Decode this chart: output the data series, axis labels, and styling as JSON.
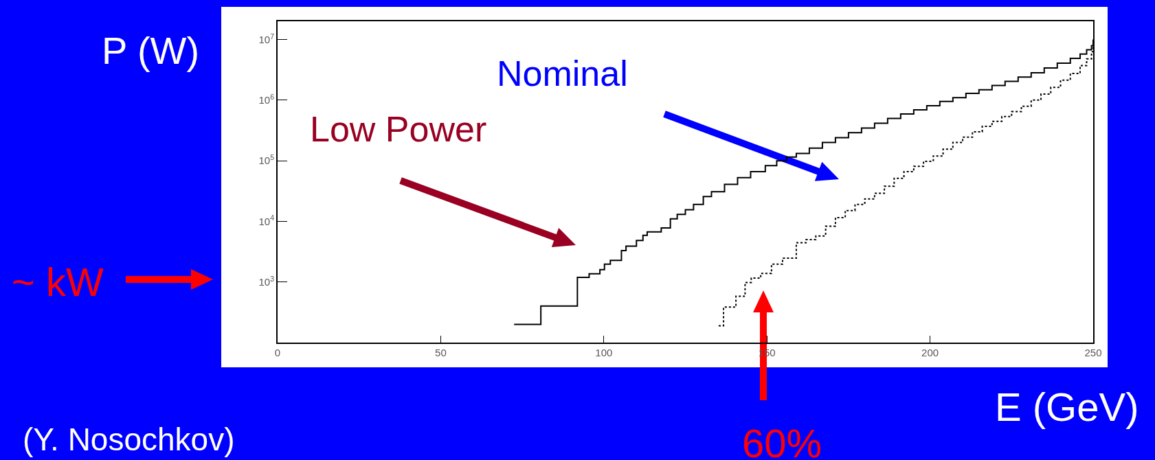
{
  "chart_data": {
    "type": "step",
    "xlabel": "E (GeV)",
    "ylabel": "P (W)",
    "log": "y",
    "grid": false,
    "marker": "none",
    "xlim": [
      0,
      250
    ],
    "xticks": [
      0,
      50,
      100,
      150,
      200,
      250
    ],
    "ylim": [
      100,
      20000000
    ],
    "yticks": [
      {
        "value": 1000,
        "label": "10$^{3}$"
      },
      {
        "value": 10000,
        "label": "10$^{4}$"
      },
      {
        "value": 100000,
        "label": "10$^{5}$"
      },
      {
        "value": 1000000,
        "label": "10$^{6}$"
      },
      {
        "value": 10000000,
        "label": "10$^{7}$"
      }
    ],
    "series": [
      {
        "color": "#000000",
        "line_style": "solid",
        "x": [
          72.5,
          80.7,
          91.9,
          95.5,
          98.8,
          100.2,
          102,
          105.4,
          106.8,
          110,
          112,
          113.3,
          117.6,
          120.4,
          122.5,
          125,
          127.5,
          130.5,
          133,
          137,
          141,
          145,
          149.5,
          153,
          156,
          159,
          163,
          167,
          171,
          175,
          179,
          183,
          187,
          191,
          195,
          199,
          203,
          207,
          211,
          215,
          219,
          223,
          227,
          231,
          235,
          239,
          243,
          246,
          248,
          249.5,
          250
        ],
        "values": [
          200,
          400,
          1190,
          1370,
          1600,
          1970,
          2270,
          3300,
          3900,
          4840,
          5900,
          6700,
          7800,
          11000,
          13000,
          15600,
          19000,
          25700,
          30900,
          40700,
          52500,
          66000,
          83000,
          100000,
          115000,
          132000,
          162000,
          200000,
          240000,
          290000,
          347000,
          417000,
          500000,
          590000,
          690000,
          810000,
          955000,
          1100000,
          1290000,
          1480000,
          1740000,
          2040000,
          2400000,
          2820000,
          3390000,
          4070000,
          4900000,
          5750000,
          6760000,
          7900000,
          10000000
        ]
      },
      {
        "color": "#000000",
        "line_style": "dotted",
        "x": [
          135.2,
          136.7,
          140.5,
          143.3,
          145.2,
          148.1,
          151.4,
          154.8,
          159,
          162,
          165,
          168,
          171,
          174,
          177,
          180,
          183,
          186,
          189,
          192,
          195,
          198,
          201,
          204,
          207,
          210,
          213,
          216,
          219,
          222,
          225,
          228,
          231,
          234,
          237,
          240,
          243,
          246,
          248,
          249.5,
          250
        ],
        "values": [
          190,
          385,
          580,
          980,
          1160,
          1380,
          1970,
          2480,
          4450,
          5000,
          5750,
          8300,
          11500,
          15100,
          19000,
          23400,
          29000,
          38000,
          51300,
          66000,
          81000,
          98000,
          120000,
          155000,
          200000,
          245000,
          300000,
          370000,
          447000,
          537000,
          646000,
          794000,
          1000000,
          1260000,
          1620000,
          2140000,
          2750000,
          3720000,
          4790000,
          6300000,
          8900000
        ]
      }
    ],
    "annotations": [
      "Low Power",
      "Nominal",
      "60%",
      "~ kW",
      "(Y. Nosochkov)"
    ]
  }
}
